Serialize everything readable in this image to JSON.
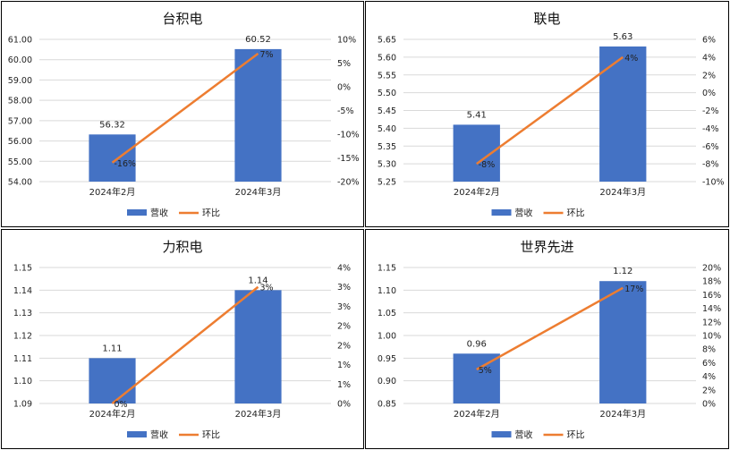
{
  "colors": {
    "bar": "#4472C4",
    "line": "#ED7D31",
    "grid": "#D9D9D9",
    "text": "#222222"
  },
  "chart_data": [
    {
      "type": "bar",
      "title": "台积电",
      "categories": [
        "2024年2月",
        "2024年3月"
      ],
      "series": [
        {
          "name": "营收",
          "type": "bar",
          "axis": "left",
          "values": [
            56.32,
            60.52
          ],
          "labels": [
            "56.32",
            "60.52"
          ]
        },
        {
          "name": "环比",
          "type": "line",
          "axis": "right",
          "values": [
            -16,
            7
          ],
          "labels": [
            "-16%",
            "7%"
          ]
        }
      ],
      "ylim_left": [
        54,
        61
      ],
      "yticks_left": [
        "54.00",
        "55.00",
        "56.00",
        "57.00",
        "58.00",
        "59.00",
        "60.00",
        "61.00"
      ],
      "ylim_right": [
        -20,
        10
      ],
      "yticks_right": [
        "-20%",
        "-15%",
        "-10%",
        "-5%",
        "0%",
        "5%",
        "10%"
      ],
      "legend": [
        "营收",
        "环比"
      ],
      "legend_position": "bottom",
      "grid": true
    },
    {
      "type": "bar",
      "title": "联电",
      "categories": [
        "2024年2月",
        "2024年3月"
      ],
      "series": [
        {
          "name": "营收",
          "type": "bar",
          "axis": "left",
          "values": [
            5.41,
            5.63
          ],
          "labels": [
            "5.41",
            "5.63"
          ]
        },
        {
          "name": "环比",
          "type": "line",
          "axis": "right",
          "values": [
            -8,
            4
          ],
          "labels": [
            "-8%",
            "4%"
          ]
        }
      ],
      "ylim_left": [
        5.25,
        5.65
      ],
      "yticks_left": [
        "5.25",
        "5.30",
        "5.35",
        "5.40",
        "5.45",
        "5.50",
        "5.55",
        "5.60",
        "5.65"
      ],
      "ylim_right": [
        -10,
        6
      ],
      "yticks_right": [
        "-10%",
        "-8%",
        "-6%",
        "-4%",
        "-2%",
        "0%",
        "2%",
        "4%",
        "6%"
      ],
      "legend": [
        "营收",
        "环比"
      ],
      "legend_position": "bottom",
      "grid": true
    },
    {
      "type": "bar",
      "title": "力积电",
      "categories": [
        "2024年2月",
        "2024年3月"
      ],
      "series": [
        {
          "name": "营收",
          "type": "bar",
          "axis": "left",
          "values": [
            1.11,
            1.14
          ],
          "labels": [
            "1.11",
            "1.14"
          ]
        },
        {
          "name": "环比",
          "type": "line",
          "axis": "right",
          "values": [
            0,
            3
          ],
          "labels": [
            "0%",
            "3%"
          ]
        }
      ],
      "ylim_left": [
        1.09,
        1.15
      ],
      "yticks_left": [
        "1.09",
        "1.10",
        "1.11",
        "1.12",
        "1.13",
        "1.14",
        "1.15"
      ],
      "ylim_right": [
        0,
        3.5
      ],
      "yticks_right": [
        "0%",
        "1%",
        "1%",
        "2%",
        "2%",
        "3%",
        "3%",
        "4%"
      ],
      "legend": [
        "营收",
        "环比"
      ],
      "legend_position": "bottom",
      "grid": true
    },
    {
      "type": "bar",
      "title": "世界先进",
      "categories": [
        "2024年2月",
        "2024年3月"
      ],
      "series": [
        {
          "name": "营收",
          "type": "bar",
          "axis": "left",
          "values": [
            0.96,
            1.12
          ],
          "labels": [
            "0.96",
            "1.12"
          ]
        },
        {
          "name": "环比",
          "type": "line",
          "axis": "right",
          "values": [
            5,
            17
          ],
          "labels": [
            "5%",
            "17%"
          ]
        }
      ],
      "ylim_left": [
        0.85,
        1.15
      ],
      "yticks_left": [
        "0.85",
        "0.90",
        "0.95",
        "1.00",
        "1.05",
        "1.10",
        "1.15"
      ],
      "ylim_right": [
        0,
        20
      ],
      "yticks_right": [
        "0%",
        "2%",
        "4%",
        "6%",
        "8%",
        "10%",
        "12%",
        "14%",
        "16%",
        "18%",
        "20%"
      ],
      "legend": [
        "营收",
        "环比"
      ],
      "legend_position": "bottom",
      "grid": true
    }
  ]
}
